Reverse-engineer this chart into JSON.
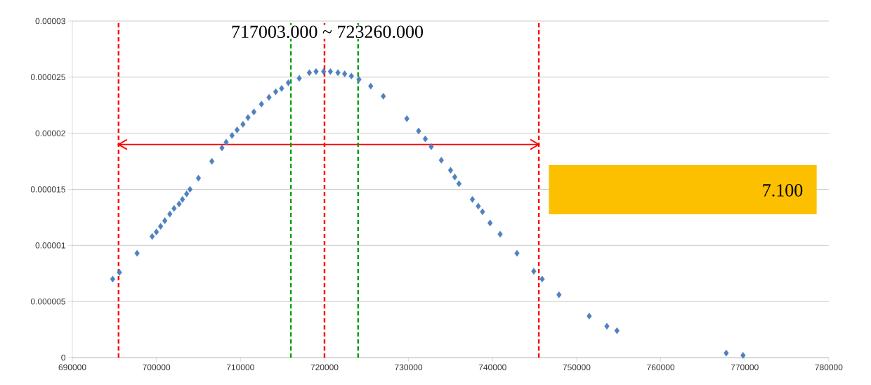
{
  "chart_data": {
    "type": "scatter",
    "grid": "y",
    "xlim": [
      690000,
      780000
    ],
    "xticks": [
      690000,
      700000,
      710000,
      720000,
      730000,
      740000,
      750000,
      760000,
      770000,
      780000
    ],
    "ylim": [
      0,
      3e-05
    ],
    "yticks": [
      {
        "value": 0,
        "label": "0"
      },
      {
        "value": 5e-06,
        "label": "0.000005"
      },
      {
        "value": 1e-05,
        "label": "0.00001"
      },
      {
        "value": 1.5e-05,
        "label": "0.000015"
      },
      {
        "value": 2e-05,
        "label": "0.00002"
      },
      {
        "value": 2.5e-05,
        "label": "0.000025"
      },
      {
        "value": 3e-05,
        "label": "0.00003"
      }
    ],
    "series": [
      {
        "color": "#4f81bd",
        "marker": "diamond",
        "x": [
          694800,
          695600,
          697700,
          699500,
          700000,
          700500,
          701000,
          701600,
          702100,
          702700,
          703100,
          703600,
          704000,
          705000,
          706600,
          707800,
          708300,
          709000,
          709600,
          710300,
          710900,
          711600,
          712500,
          713400,
          714200,
          714900,
          715700,
          717000,
          718200,
          719000,
          719900,
          720700,
          721600,
          722400,
          723200,
          724100,
          725500,
          727000,
          729800,
          731200,
          732000,
          732700,
          733900,
          735000,
          735500,
          736000,
          737600,
          738300,
          738800,
          739700,
          740900,
          742900,
          744900,
          745900,
          747900,
          751500,
          753600,
          754800,
          767800,
          769800
        ],
        "values": [
          7e-06,
          7.6e-06,
          9.3e-06,
          1.08e-05,
          1.12e-05,
          1.17e-05,
          1.22e-05,
          1.28e-05,
          1.33e-05,
          1.37e-05,
          1.41e-05,
          1.46e-05,
          1.5e-05,
          1.6e-05,
          1.75e-05,
          1.87e-05,
          1.92e-05,
          1.98e-05,
          2.03e-05,
          2.08e-05,
          2.14e-05,
          2.19e-05,
          2.26e-05,
          2.32e-05,
          2.37e-05,
          2.4e-05,
          2.45e-05,
          2.49e-05,
          2.54e-05,
          2.55e-05,
          2.55e-05,
          2.55e-05,
          2.54e-05,
          2.53e-05,
          2.51e-05,
          2.48e-05,
          2.42e-05,
          2.33e-05,
          2.13e-05,
          2.02e-05,
          1.95e-05,
          1.88e-05,
          1.76e-05,
          1.67e-05,
          1.61e-05,
          1.55e-05,
          1.41e-05,
          1.35e-05,
          1.3e-05,
          1.2e-05,
          1.1e-05,
          9.3e-06,
          7.7e-06,
          7e-06,
          5.6e-06,
          3.7e-06,
          2.8e-06,
          2.4e-06,
          4e-07,
          2e-07
        ]
      },
      {
        "type": "line",
        "color": "#ff0000",
        "marker": "none",
        "x": [
          695500,
          745500
        ],
        "values": [
          1.9e-05,
          1.9e-05
        ]
      }
    ],
    "ref_lines": [
      {
        "axis": "x",
        "value": 695500,
        "color": "#ff0000",
        "line_style": "dashed"
      },
      {
        "axis": "x",
        "value": 716000,
        "color": "#00a000",
        "line_style": "dashed"
      },
      {
        "axis": "x",
        "value": 720000,
        "color": "#ff0000",
        "line_style": "dashed"
      },
      {
        "axis": "x",
        "value": 724000,
        "color": "#00a000",
        "line_style": "dashed"
      },
      {
        "axis": "x",
        "value": 745500,
        "color": "#ff0000",
        "line_style": "dashed"
      }
    ],
    "annotations": [
      "717003.000 ~ 723260.000",
      "7.100"
    ]
  }
}
